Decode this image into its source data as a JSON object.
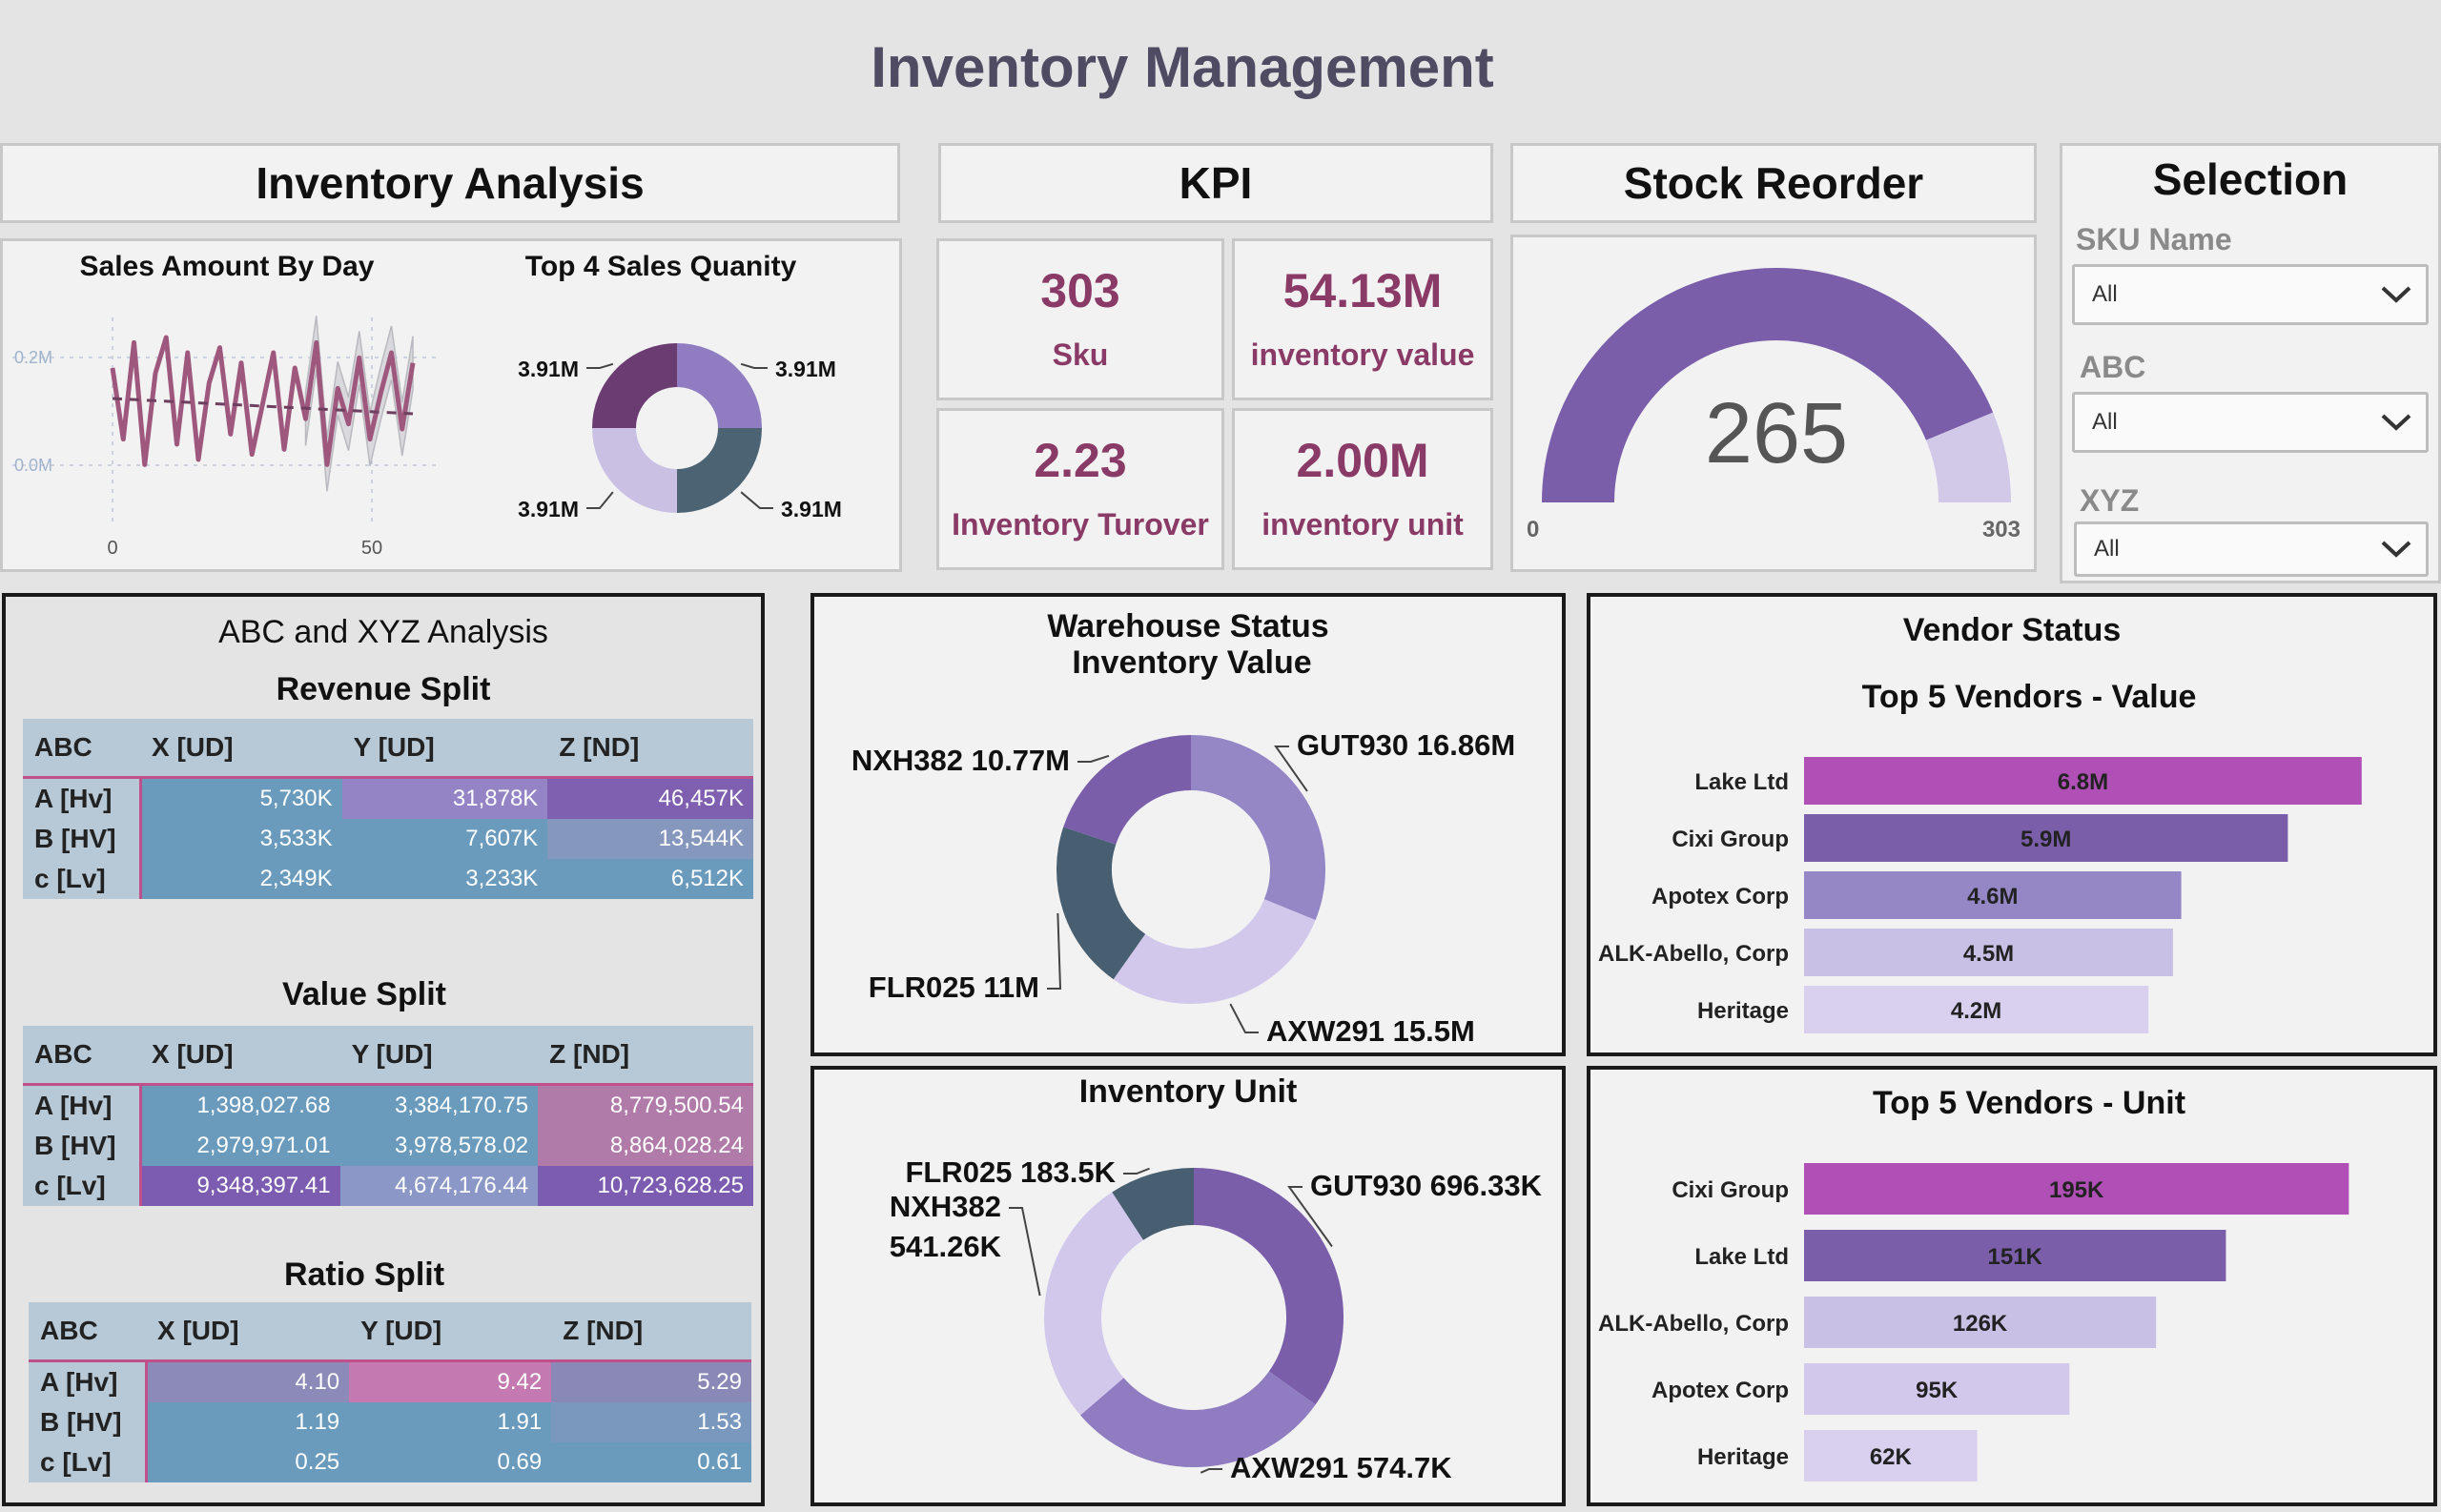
{
  "title": "Inventory Management",
  "headers": {
    "inventory_analysis": "Inventory Analysis",
    "kpi": "KPI",
    "stock_reorder": "Stock Reorder",
    "selection": "Selection"
  },
  "kpis": [
    {
      "value": "303",
      "label": "Sku"
    },
    {
      "value": "54.13M",
      "label": "inventory value"
    },
    {
      "value": "2.23",
      "label": "Inventory Turover"
    },
    {
      "value": "2.00M",
      "label": "inventory unit"
    }
  ],
  "selection": {
    "filters": [
      {
        "label": "SKU Name",
        "value": "All"
      },
      {
        "label": "ABC",
        "value": "All"
      },
      {
        "label": "XYZ",
        "value": "All"
      }
    ]
  },
  "abc_xyz": {
    "title": "ABC and XYZ Analysis",
    "columns": [
      "ABC",
      "X [UD]",
      "Y [UD]",
      "Z [ND]"
    ],
    "row_labels": [
      "A [Hv]",
      "B [HV]",
      "c [Lv]"
    ],
    "revenue": {
      "title": "Revenue Split",
      "rows": [
        [
          "5,730K",
          "31,878K",
          "46,457K"
        ],
        [
          "3,533K",
          "7,607K",
          "13,544K"
        ],
        [
          "2,349K",
          "3,233K",
          "6,512K"
        ]
      ],
      "colors": [
        [
          "#6a9bbd",
          "#9484c6",
          "#7e5fb0"
        ],
        [
          "#6a9bbd",
          "#6a9bbd",
          "#8697be"
        ],
        [
          "#6a9bbd",
          "#6a9bbd",
          "#6a9bbd"
        ]
      ]
    },
    "value": {
      "title": "Value Split",
      "rows": [
        [
          "1,398,027.68",
          "3,384,170.75",
          "8,779,500.54"
        ],
        [
          "2,979,971.01",
          "3,978,578.02",
          "8,864,028.24"
        ],
        [
          "9,348,397.41",
          "4,674,176.44",
          "10,723,628.25"
        ]
      ],
      "colors": [
        [
          "#6a9bbd",
          "#6a9bbd",
          "#b07aa9"
        ],
        [
          "#6a9bbd",
          "#6a9bbd",
          "#b07aa9"
        ],
        [
          "#7c5cb0",
          "#8b97c6",
          "#7c5cb0"
        ]
      ]
    },
    "ratio": {
      "title": "Ratio Split",
      "rows": [
        [
          "4.10",
          "9.42",
          "5.29"
        ],
        [
          "1.19",
          "1.91",
          "1.53"
        ],
        [
          "0.25",
          "0.69",
          "0.61"
        ]
      ],
      "colors": [
        [
          "#8b8ab8",
          "#c47ab0",
          "#8a88b6"
        ],
        [
          "#6a9bbd",
          "#6a9bbd",
          "#7a98bd"
        ],
        [
          "#6a9bbd",
          "#6a9bbd",
          "#6a9bbd"
        ]
      ]
    }
  },
  "chart_data": [
    {
      "type": "line",
      "title": "Sales Amount By Day",
      "x": [
        0,
        2,
        4,
        6,
        8,
        10,
        12,
        14,
        16,
        18,
        20,
        22,
        24,
        26,
        28,
        30,
        32,
        34,
        36,
        38,
        40,
        42,
        44,
        46,
        48,
        50,
        52,
        54,
        56
      ],
      "y_ticks": [
        "0.2M",
        "0.0M"
      ],
      "x_ticks": [
        "0",
        "50"
      ],
      "series": [
        {
          "values": [
            0.16,
            0.02,
            0.21,
            -0.03,
            0.15,
            0.22,
            0.01,
            0.19,
            -0.02,
            0.13,
            0.2,
            0.03,
            0.17,
            -0.01,
            0.09,
            0.19,
            0.0,
            0.16,
            0.06,
            0.21,
            -0.03,
            0.12,
            0.05,
            0.18,
            0.02,
            0.11,
            0.19,
            0.04,
            0.17
          ]
        }
      ],
      "forecast_band": true
    },
    {
      "type": "pie",
      "title": "Top 4 Sales Quanity",
      "donut": true,
      "values": [
        3.91,
        3.91,
        3.91,
        3.91
      ],
      "labels": [
        "3.91M",
        "3.91M",
        "3.91M",
        "3.91M"
      ],
      "colors": [
        "#8f7cc1",
        "#4b6373",
        "#c9c0e3",
        "#6b3c72"
      ]
    },
    {
      "type": "gauge",
      "value": 265,
      "min": 0,
      "max": 303,
      "value_label": "265",
      "min_label": "0",
      "max_label": "303",
      "colors": {
        "fill": "#7a5eaa",
        "rest": "#d2c8e8"
      }
    },
    {
      "type": "pie",
      "title": "Warehouse Status",
      "subtitle": "Inventory Value",
      "donut": true,
      "categories": [
        "GUT930",
        "AXW291",
        "FLR025",
        "NXH382"
      ],
      "values": [
        16.86,
        15.5,
        11,
        10.77
      ],
      "labels": [
        "GUT930 16.86M",
        "AXW291 15.5M",
        "FLR025 11M",
        "NXH382 10.77M"
      ],
      "colors": [
        "#9587c6",
        "#d2c8ec",
        "#475f70",
        "#7a5eaa"
      ]
    },
    {
      "type": "pie",
      "title": "Inventory Unit",
      "donut": true,
      "categories": [
        "GUT930",
        "AXW291",
        "NXH382",
        "FLR025"
      ],
      "values": [
        696.33,
        574.7,
        541.26,
        183.5
      ],
      "labels": [
        "GUT930 696.33K",
        "AXW291 574.7K",
        "NXH382 541.26K",
        "FLR025 183.5K"
      ],
      "colors": [
        "#7a5eaa",
        "#8f7cc1",
        "#d2c8ec",
        "#475f70"
      ]
    },
    {
      "type": "bar",
      "orientation": "horizontal",
      "title": "Vendor Status",
      "subtitle": "Top 5 Vendors - Value",
      "categories": [
        "Lake Ltd",
        "Cixi Group",
        "Apotex Corp",
        "ALK-Abello, Corp",
        "Heritage"
      ],
      "values": [
        6.8,
        5.9,
        4.6,
        4.5,
        4.2
      ],
      "labels": [
        "6.8M",
        "5.9M",
        "4.6M",
        "4.5M",
        "4.2M"
      ],
      "colors": [
        "#b04fb6",
        "#7a5eaa",
        "#9587c6",
        "#c9c0e6",
        "#d8d0ee"
      ]
    },
    {
      "type": "bar",
      "orientation": "horizontal",
      "title": "Top 5 Vendors - Unit",
      "categories": [
        "Cixi Group",
        "Lake Ltd",
        "ALK-Abello, Corp",
        "Apotex Corp",
        "Heritage"
      ],
      "values": [
        195,
        151,
        126,
        95,
        62
      ],
      "labels": [
        "195K",
        "151K",
        "126K",
        "95K",
        "62K"
      ],
      "colors": [
        "#b04fb6",
        "#7a5eaa",
        "#c9c0e6",
        "#d2c8ec",
        "#d8d0ee"
      ]
    }
  ]
}
